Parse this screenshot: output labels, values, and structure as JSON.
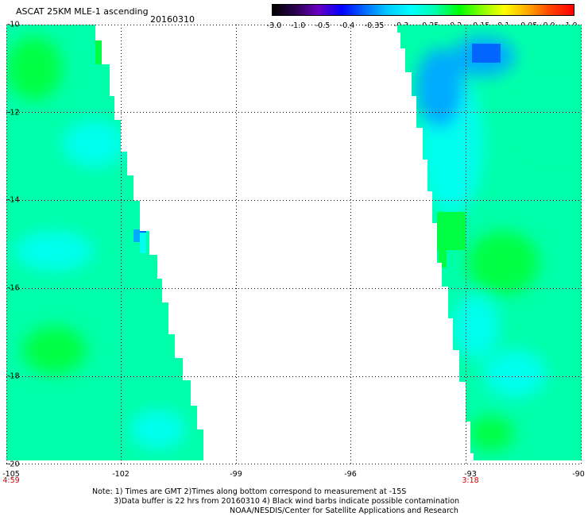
{
  "header": {
    "title": "ASCAT 25KM MLE-1 ascending",
    "date": "20160310"
  },
  "colorbar": {
    "labels": [
      "-3.0",
      "-1.0",
      "-0.5",
      "-0.4",
      "-0.35",
      "-0.3",
      "-0.25",
      "-0.2",
      "-0.15",
      "-0.1",
      "-0.05",
      "0.0",
      "1.0"
    ],
    "colors": [
      "#000000",
      "#6a00c0",
      "#0000ff",
      "#0070ff",
      "#00c8ff",
      "#00ffff",
      "#00ffaa",
      "#00ff00",
      "#80ff00",
      "#ffff00",
      "#ffa500",
      "#ff4400",
      "#ff0000"
    ]
  },
  "map": {
    "lat_labels": [
      "-10",
      "-12",
      "-14",
      "-16",
      "-18",
      "-20"
    ],
    "lon_labels": [
      "-105",
      "-102",
      "-99",
      "-96",
      "-93",
      "-90"
    ],
    "time_labels": [
      "4:59",
      "3:18"
    ],
    "swath_colors": {
      "base": "#00ffaa",
      "green": "#00ff44",
      "cyan": "#00ffee",
      "blue": "#00aaff",
      "deep_blue": "#0066ff"
    }
  },
  "notes": {
    "line1": "Note: 1) Times are GMT 2)Times along bottom correspond to measurement at -15S",
    "line2": "3)Data buffer is 22 hrs from 20160310 4) Black wind barbs indicate possible contamination",
    "line3": "NOAA/NESDIS/Center for Satellite Applications and Research"
  }
}
